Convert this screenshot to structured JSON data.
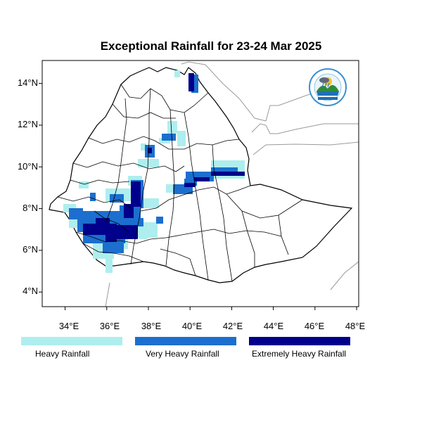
{
  "title": "Exceptional Rainfall for 23-24 Mar 2025",
  "map": {
    "x_ticks": [
      "34°E",
      "36°E",
      "38°E",
      "40°E",
      "42°E",
      "44°E",
      "46°E",
      "48°E"
    ],
    "y_ticks": [
      "14°N",
      "12°N",
      "10°N",
      "8°N",
      "6°N",
      "4°N"
    ],
    "lon_range": [
      32.9,
      48.1
    ],
    "lat_range": [
      3.3,
      15.1
    ],
    "logo_icon": "meteorology-agency-logo-icon"
  },
  "legend": [
    {
      "label": "Heavy Rainfall",
      "color": "#aeeeee"
    },
    {
      "label": "Very Heavy Rainfall",
      "color": "#1c6fcf"
    },
    {
      "label": "Extremely Heavy Rainfall",
      "color": "#00008b"
    }
  ],
  "colors": {
    "country_fill": "#ffffff",
    "border": "#000000",
    "neighbor_border": "#999999"
  }
}
